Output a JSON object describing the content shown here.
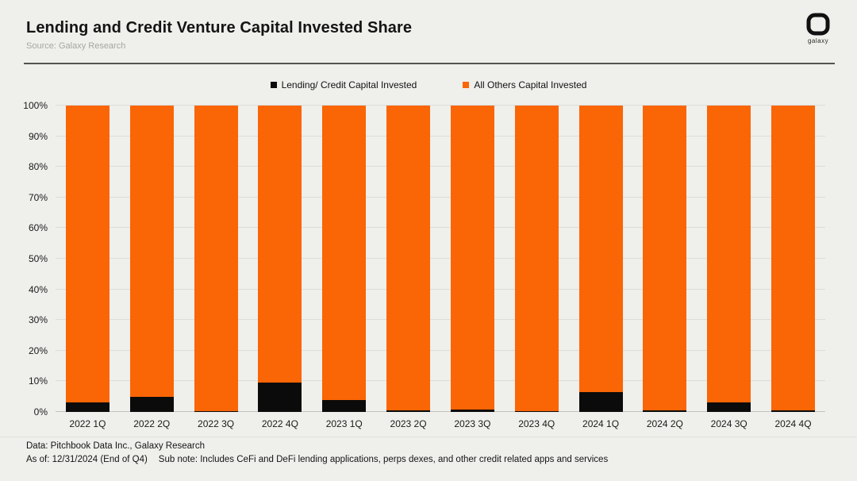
{
  "header": {
    "title": "Lending and Credit Venture Capital Invested Share",
    "subtitle": "Source: Galaxy Research",
    "logo_text": "galaxy"
  },
  "legend": [
    {
      "label": "Lending/ Credit Capital Invested",
      "color": "#0b0b0b"
    },
    {
      "label": "All Others Capital Invested",
      "color": "#fa6505"
    }
  ],
  "colors": {
    "background": "#efefec",
    "lending": "#0b0b0b",
    "others": "#fa6505"
  },
  "chart_data": {
    "type": "bar",
    "stacked": true,
    "stacking": "percent",
    "title": "Lending and Credit Venture Capital Invested Share",
    "categories": [
      "2022 1Q",
      "2022 2Q",
      "2022 3Q",
      "2022 4Q",
      "2023 1Q",
      "2023 2Q",
      "2023 3Q",
      "2023 4Q",
      "2024 1Q",
      "2024 2Q",
      "2024 3Q",
      "2024 4Q"
    ],
    "series": [
      {
        "name": "Lending/ Credit Capital Invested",
        "color": "#0b0b0b",
        "values": [
          3,
          5,
          0.3,
          9.5,
          4,
          0.4,
          0.7,
          0.2,
          6.5,
          0.5,
          3,
          0.5
        ]
      },
      {
        "name": "All Others Capital Invested",
        "color": "#fa6505",
        "values": [
          97,
          95,
          99.7,
          90.5,
          96,
          99.6,
          99.3,
          99.8,
          93.5,
          99.5,
          97,
          99.5
        ]
      }
    ],
    "xlabel": "",
    "ylabel": "",
    "ylim": [
      0,
      100
    ],
    "y_ticks": [
      "0%",
      "10%",
      "20%",
      "30%",
      "40%",
      "50%",
      "60%",
      "70%",
      "80%",
      "90%",
      "100%"
    ],
    "grid": true,
    "legend_position": "top"
  },
  "footer": {
    "line1": "Data: Pitchbook Data Inc., Galaxy Research",
    "as_of": "As of: 12/31/2024 (End of Q4)",
    "sub_note": "Sub note: Includes CeFi and DeFi lending applications, perps dexes, and other credit related apps and services"
  }
}
